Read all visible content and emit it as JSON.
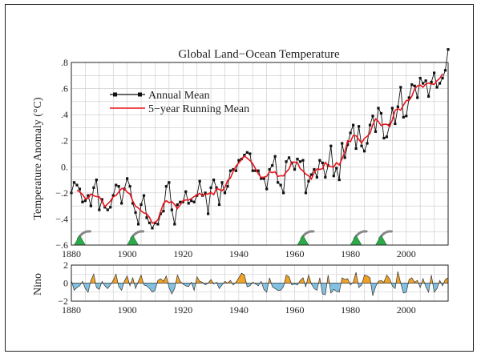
{
  "chart_data": [
    {
      "type": "line",
      "title": "Global Land−Ocean Temperature",
      "xlabel": "",
      "ylabel": "Temperature Anomaly (°C)",
      "xlim": [
        1880,
        2015
      ],
      "ylim": [
        -0.6,
        0.8
      ],
      "xticks": [
        1880,
        1900,
        1920,
        1940,
        1960,
        1980,
        2000
      ],
      "yticks": [
        -0.6,
        -0.4,
        -0.2,
        0.0,
        0.2,
        0.4,
        0.6,
        0.8
      ],
      "ytick_labels": [
        "−.6",
        "−.4",
        "−.2",
        "0.",
        ".2",
        ".4",
        ".6",
        ".8"
      ],
      "grid": true,
      "legend_position": "top-left",
      "x_start": 1880,
      "series": [
        {
          "name": "Annual Mean",
          "color": "#111111",
          "marker": "square",
          "values": [
            -0.2,
            -0.12,
            -0.14,
            -0.17,
            -0.27,
            -0.26,
            -0.22,
            -0.3,
            -0.16,
            -0.1,
            -0.33,
            -0.25,
            -0.31,
            -0.33,
            -0.31,
            -0.22,
            -0.14,
            -0.15,
            -0.28,
            -0.17,
            -0.09,
            -0.15,
            -0.28,
            -0.35,
            -0.44,
            -0.29,
            -0.22,
            -0.39,
            -0.43,
            -0.47,
            -0.43,
            -0.44,
            -0.36,
            -0.34,
            -0.15,
            -0.12,
            -0.33,
            -0.44,
            -0.29,
            -0.27,
            -0.27,
            -0.19,
            -0.28,
            -0.26,
            -0.27,
            -0.22,
            -0.11,
            -0.22,
            -0.2,
            -0.36,
            -0.16,
            -0.1,
            -0.16,
            -0.29,
            -0.12,
            -0.2,
            -0.15,
            -0.03,
            -0.02,
            -0.03,
            0.05,
            0.06,
            0.09,
            0.11,
            0.1,
            -0.03,
            -0.03,
            -0.03,
            -0.09,
            -0.09,
            -0.17,
            -0.02,
            0.01,
            0.08,
            -0.12,
            -0.14,
            -0.2,
            0.04,
            0.07,
            0.03,
            -0.02,
            0.06,
            0.04,
            0.05,
            -0.2,
            -0.11,
            -0.06,
            -0.02,
            -0.08,
            0.05,
            0.03,
            -0.08,
            0.01,
            0.16,
            -0.07,
            -0.01,
            -0.1,
            0.18,
            0.07,
            0.17,
            0.26,
            0.32,
            0.14,
            0.31,
            0.16,
            0.12,
            0.18,
            0.32,
            0.39,
            0.27,
            0.45,
            0.41,
            0.22,
            0.23,
            0.32,
            0.45,
            0.33,
            0.46,
            0.61,
            0.38,
            0.39,
            0.53,
            0.63,
            0.62,
            0.53,
            0.68,
            0.64,
            0.66,
            0.54,
            0.65,
            0.72,
            0.61,
            0.64,
            0.68,
            0.74,
            0.9
          ],
          "note": ""
        },
        {
          "name": "5−year Running Mean",
          "color": "#e8141b",
          "smoothing_window": 5
        }
      ],
      "volcano_markers": [
        1883,
        1902,
        1963,
        1982,
        1991
      ]
    },
    {
      "type": "area",
      "ylabel": "Nino",
      "xlim": [
        1880,
        2015
      ],
      "ylim": [
        -2,
        2
      ],
      "yticks": [
        -2,
        0,
        2
      ],
      "ytick_labels": [
        "−2",
        "0",
        "2"
      ],
      "xticks": [
        1880,
        1900,
        1920,
        1940,
        1960,
        1980,
        2000
      ],
      "grid": true,
      "positive_color": "#f0a020",
      "negative_color": "#7ec0e0",
      "x_start": 1880,
      "values": [
        0.3,
        -0.8,
        -0.5,
        -0.3,
        0.2,
        -0.6,
        -1.0,
        0.3,
        1.0,
        -0.5,
        -0.7,
        0.2,
        -0.3,
        -0.6,
        -0.2,
        0.3,
        1.0,
        -0.4,
        -0.8,
        0.2,
        0.8,
        -0.3,
        0.6,
        -0.6,
        0.2,
        0.9,
        -0.2,
        -0.3,
        -0.6,
        -1.0,
        -0.8,
        0.3,
        0.5,
        0.2,
        0.8,
        -0.5,
        -1.2,
        -0.6,
        0.9,
        0.2,
        -0.1,
        -0.3,
        -0.4,
        0.1,
        -0.8,
        0.7,
        0.2,
        0.1,
        -0.2,
        0.0,
        0.4,
        -0.1,
        0.1,
        -0.6,
        -0.2,
        0.2,
        0.0,
        0.3,
        -0.2,
        0.1,
        0.6,
        1.1,
        0.9,
        -0.4,
        -0.3,
        0.1,
        -0.1,
        -0.3,
        0.2,
        -0.7,
        -1.0,
        0.6,
        -0.4,
        -0.6,
        -0.8,
        -0.8,
        -0.4,
        0.9,
        0.7,
        -0.2,
        -0.1,
        -0.2,
        0.3,
        0.6,
        -0.4,
        0.9,
        -0.1,
        -0.6,
        -0.8,
        0.6,
        -1.2,
        -1.3,
        0.9,
        -1.1,
        -0.7,
        -0.9,
        -1.0,
        0.6,
        0.4,
        0.5,
        -0.2,
        0.1,
        1.2,
        -0.5,
        -0.2,
        0.9,
        0.8,
        0.6,
        -1.4,
        -0.4,
        0.2,
        0.3,
        0.1,
        0.9,
        0.5,
        -0.3,
        -0.6,
        1.3,
        0.0,
        -1.1,
        -1.0,
        0.4,
        0.6,
        0.1,
        0.3,
        -0.5,
        0.5,
        -0.4,
        -1.0,
        0.9,
        -1.0,
        -0.6,
        0.3,
        -0.3,
        0.4,
        0.6
      ]
    }
  ],
  "legend": [
    {
      "label": "Annual Mean",
      "color": "#111111"
    },
    {
      "label": "5−year Running Mean",
      "color": "#e8141b"
    }
  ]
}
